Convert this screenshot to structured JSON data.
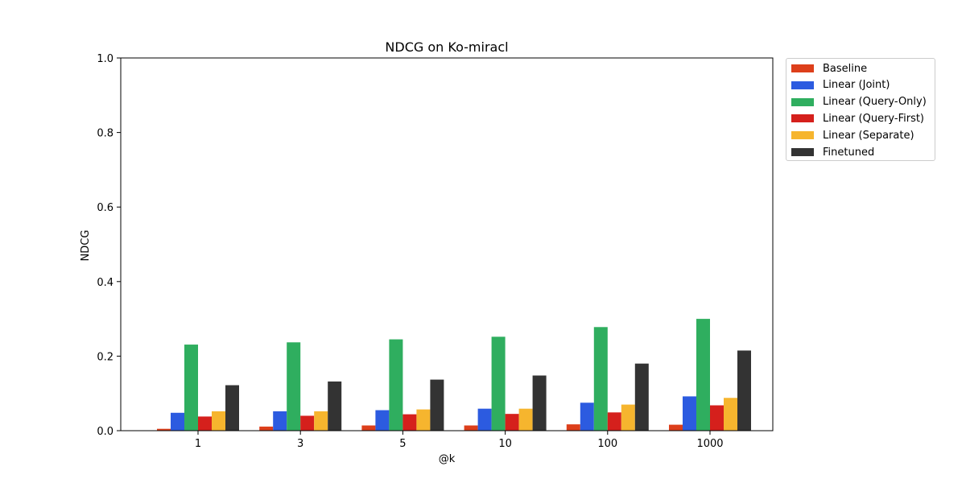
{
  "chart_data": {
    "type": "bar",
    "title": "NDCG on Ko-miracl",
    "xlabel": "@k",
    "ylabel": "NDCG",
    "ylim": [
      0,
      1.0
    ],
    "yticks": [
      "0.0",
      "0.2",
      "0.4",
      "0.6",
      "0.8",
      "1.0"
    ],
    "categories": [
      "1",
      "3",
      "5",
      "10",
      "100",
      "1000"
    ],
    "grid": false,
    "legend_placement": "outside-right",
    "series": [
      {
        "name": "Baseline",
        "color": "#dd3f1b",
        "values": [
          0.005,
          0.011,
          0.014,
          0.014,
          0.017,
          0.016
        ]
      },
      {
        "name": "Linear (Joint)",
        "color": "#2c5be0",
        "values": [
          0.048,
          0.052,
          0.055,
          0.059,
          0.075,
          0.092
        ]
      },
      {
        "name": "Linear (Query-Only)",
        "color": "#2fae5f",
        "values": [
          0.231,
          0.237,
          0.245,
          0.252,
          0.278,
          0.3
        ]
      },
      {
        "name": "Linear (Query-First)",
        "color": "#d5201c",
        "values": [
          0.038,
          0.04,
          0.044,
          0.045,
          0.049,
          0.068
        ]
      },
      {
        "name": "Linear (Separate)",
        "color": "#f6b52e",
        "values": [
          0.052,
          0.052,
          0.057,
          0.059,
          0.07,
          0.088
        ]
      },
      {
        "name": "Finetuned",
        "color": "#333333",
        "values": [
          0.122,
          0.132,
          0.137,
          0.148,
          0.18,
          0.215
        ]
      }
    ]
  }
}
